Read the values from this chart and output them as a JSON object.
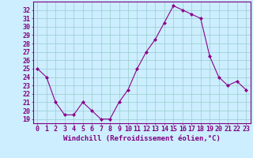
{
  "x": [
    0,
    1,
    2,
    3,
    4,
    5,
    6,
    7,
    8,
    9,
    10,
    11,
    12,
    13,
    14,
    15,
    16,
    17,
    18,
    19,
    20,
    21,
    22,
    23
  ],
  "y": [
    25.0,
    24.0,
    21.0,
    19.5,
    19.5,
    21.0,
    20.0,
    19.0,
    19.0,
    21.0,
    22.5,
    25.0,
    27.0,
    28.5,
    30.5,
    32.5,
    32.0,
    31.5,
    31.0,
    26.5,
    24.0,
    23.0,
    23.5,
    22.5
  ],
  "line_color": "#8B008B",
  "marker": "D",
  "marker_size": 2.0,
  "bg_color": "#cceeff",
  "grid_color": "#99cccc",
  "xlabel": "Windchill (Refroidissement éolien,°C)",
  "xlabel_fontsize": 6.5,
  "ylim": [
    18.5,
    33.0
  ],
  "xlim": [
    -0.5,
    23.5
  ],
  "tick_fontsize": 6,
  "axis_color": "#800080"
}
